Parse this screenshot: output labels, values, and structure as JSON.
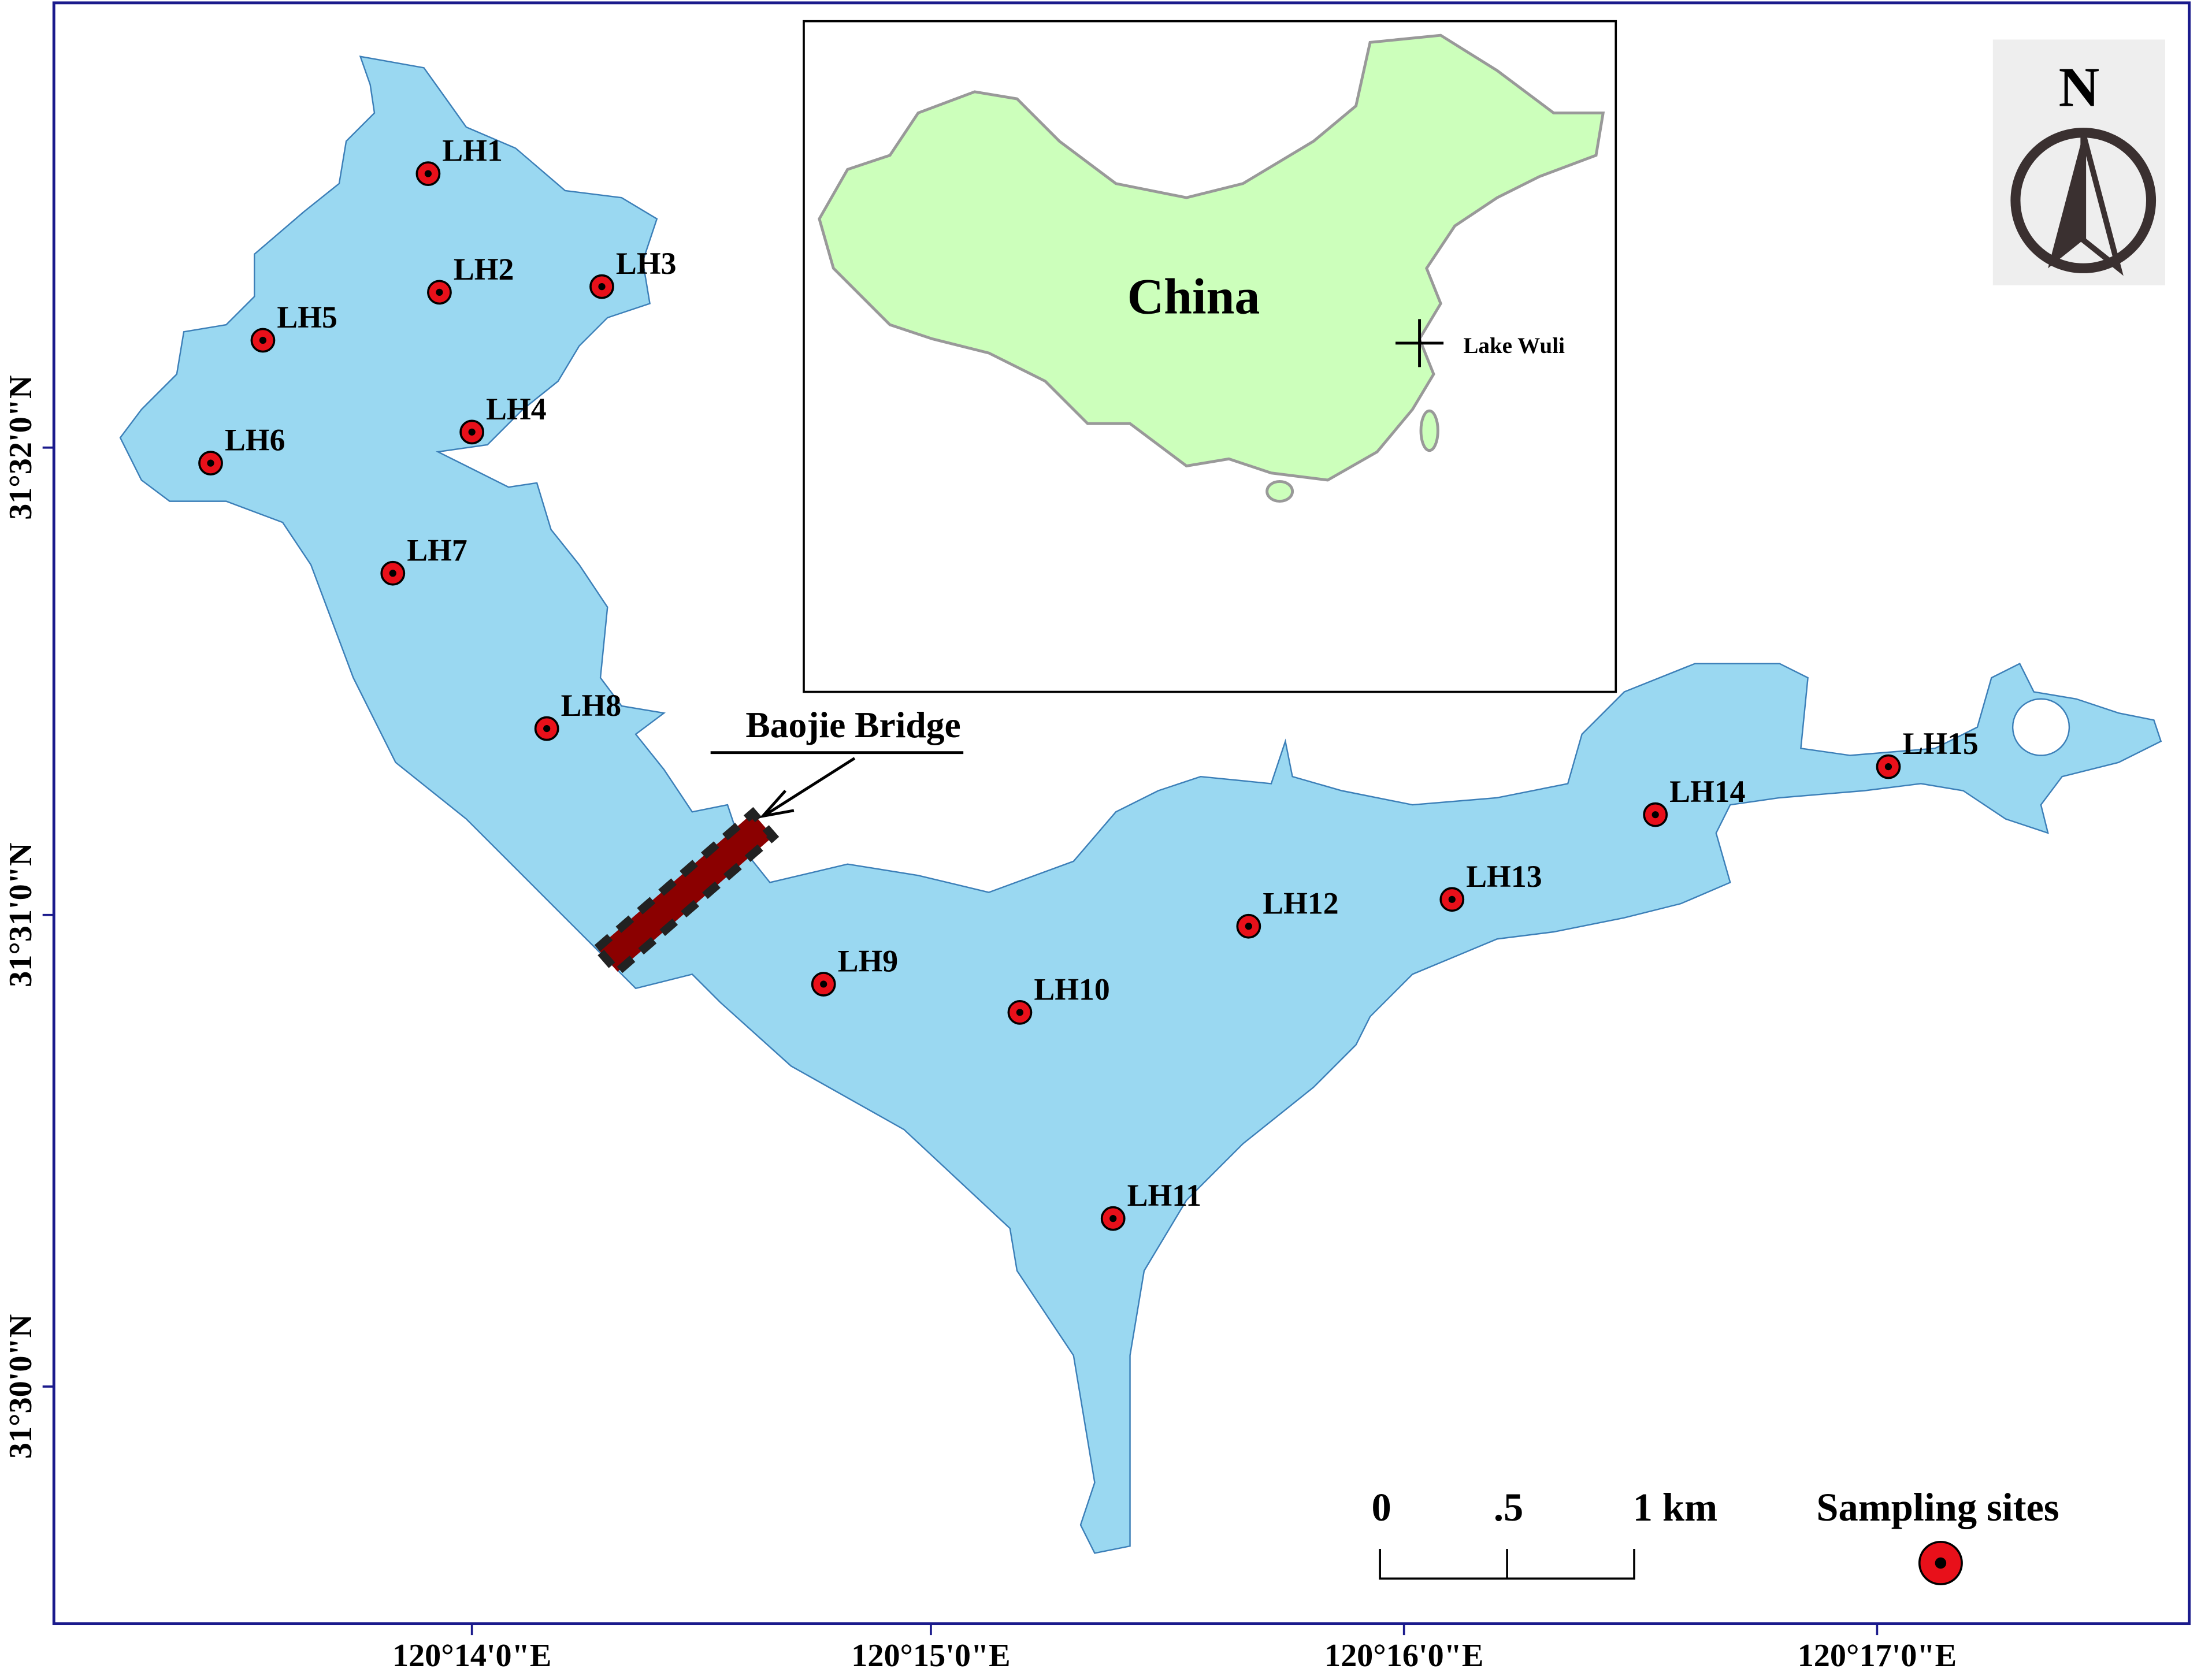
{
  "inset": {
    "country": "China",
    "lake": "Lake Wuli"
  },
  "north": "N",
  "bridge": "Baojie Bridge",
  "sites": [
    "LH1",
    "LH2",
    "LH3",
    "LH4",
    "LH5",
    "LH6",
    "LH7",
    "LH8",
    "LH9",
    "LH10",
    "LH11",
    "LH12",
    "LH13",
    "LH14",
    "LH15"
  ],
  "longitude_labels": [
    "120°14'0\"E",
    "120°15'0\"E",
    "120°16'0\"E",
    "120°17'0\"E"
  ],
  "latitude_labels": [
    "31°32'0\"N",
    "31°31'0\"N",
    "31°30'0\"N"
  ],
  "scale": [
    "0",
    ".5",
    "1 km"
  ],
  "legend": "Sampling sites"
}
